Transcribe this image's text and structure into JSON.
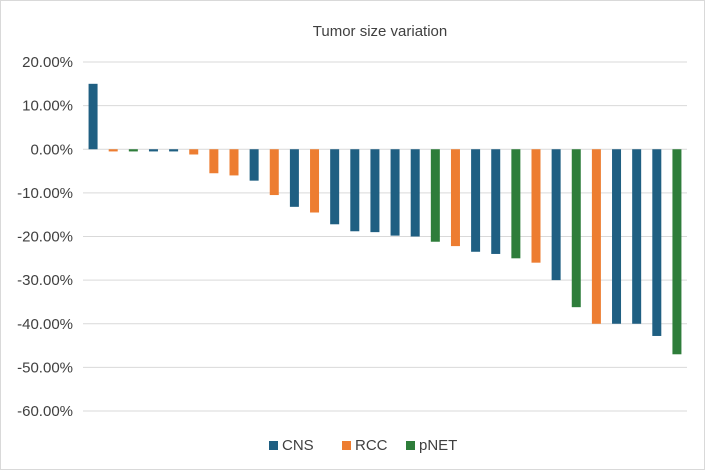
{
  "chart_data": {
    "type": "bar",
    "title": "Tumor size variation",
    "xlabel": "",
    "ylabel": "",
    "ylim": [
      -0.6,
      0.2
    ],
    "y_ticks": [
      0.2,
      0.1,
      0.0,
      -0.1,
      -0.2,
      -0.3,
      -0.4,
      -0.5,
      -0.6
    ],
    "y_tick_labels": [
      "20.00%",
      "10.00%",
      "0.00%",
      "-10.00%",
      "-20.00%",
      "-30.00%",
      "-40.00%",
      "-50.00%",
      "-60.00%"
    ],
    "grid": true,
    "legend_position": "bottom",
    "series": [
      {
        "name": "CNS",
        "color": "#1f5f82"
      },
      {
        "name": "RCC",
        "color": "#ed7d31"
      },
      {
        "name": "pNET",
        "color": "#2e7d3a"
      }
    ],
    "bars": [
      {
        "series": "CNS",
        "value": 0.15
      },
      {
        "series": "RCC",
        "value": -0.005
      },
      {
        "series": "pNET",
        "value": -0.005
      },
      {
        "series": "CNS",
        "value": -0.005
      },
      {
        "series": "CNS",
        "value": -0.005
      },
      {
        "series": "RCC",
        "value": -0.012
      },
      {
        "series": "RCC",
        "value": -0.055
      },
      {
        "series": "RCC",
        "value": -0.06
      },
      {
        "series": "CNS",
        "value": -0.072
      },
      {
        "series": "RCC",
        "value": -0.105
      },
      {
        "series": "CNS",
        "value": -0.132
      },
      {
        "series": "RCC",
        "value": -0.145
      },
      {
        "series": "CNS",
        "value": -0.172
      },
      {
        "series": "CNS",
        "value": -0.188
      },
      {
        "series": "CNS",
        "value": -0.19
      },
      {
        "series": "CNS",
        "value": -0.198
      },
      {
        "series": "CNS",
        "value": -0.2
      },
      {
        "series": "pNET",
        "value": -0.212
      },
      {
        "series": "RCC",
        "value": -0.222
      },
      {
        "series": "CNS",
        "value": -0.235
      },
      {
        "series": "CNS",
        "value": -0.24
      },
      {
        "series": "pNET",
        "value": -0.25
      },
      {
        "series": "RCC",
        "value": -0.26
      },
      {
        "series": "CNS",
        "value": -0.3
      },
      {
        "series": "pNET",
        "value": -0.362
      },
      {
        "series": "RCC",
        "value": -0.4
      },
      {
        "series": "CNS",
        "value": -0.4
      },
      {
        "series": "CNS",
        "value": -0.4
      },
      {
        "series": "CNS",
        "value": -0.428
      },
      {
        "series": "pNET",
        "value": -0.47
      }
    ]
  }
}
